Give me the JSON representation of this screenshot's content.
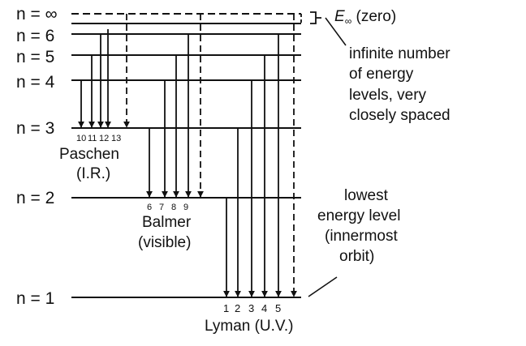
{
  "levels": [
    {
      "label": "n = ∞"
    },
    {
      "label": "n = 6"
    },
    {
      "label": "n = 5"
    },
    {
      "label": "n = 4"
    },
    {
      "label": "n = 3"
    },
    {
      "label": "n = 2"
    },
    {
      "label": "n = 1"
    }
  ],
  "annotations": {
    "e_inf_symbol": "E",
    "e_inf_sub": "∞",
    "e_inf_text": " (zero)",
    "infinite_lines": [
      "infinite number",
      "of energy",
      "levels, very",
      "closely spaced"
    ],
    "lowest_lines": [
      "lowest",
      "energy level",
      "(innermost",
      "orbit)"
    ]
  },
  "series": {
    "paschen": {
      "name": "Paschen",
      "region": "(I.R.)",
      "numbers": [
        "10",
        "11",
        "12",
        "13"
      ]
    },
    "balmer": {
      "name": "Balmer",
      "region": "(visible)",
      "numbers": [
        "6",
        "7",
        "8",
        "9"
      ]
    },
    "lyman": {
      "name": "Lyman (U.V.)",
      "numbers": [
        "1",
        "2",
        "3",
        "4",
        "5"
      ]
    }
  }
}
